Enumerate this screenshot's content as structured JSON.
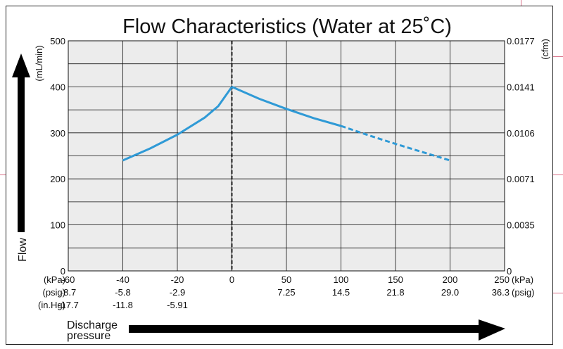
{
  "chart_data": {
    "type": "line",
    "title": "Flow Characteristics (Water at 25˚C)",
    "ylabel": "Flow",
    "ylabel_unit": "(mL/min)",
    "y2label_unit": "(cfm)",
    "xlabel": [
      "Discharge",
      "pressure"
    ],
    "ylim": [
      0,
      500
    ],
    "xlim": [
      -60,
      250
    ],
    "grid": true,
    "y_ticks": [
      0,
      100,
      200,
      300,
      400,
      500
    ],
    "y_tick_labels": [
      "0",
      "100",
      "200",
      "300",
      "400",
      "500"
    ],
    "y2_tick_labels": [
      "0",
      "0.0035",
      "0.0071",
      "0.0106",
      "0.0141",
      "0.0177"
    ],
    "x_ticks": [
      -60,
      -40,
      -20,
      0,
      50,
      100,
      150,
      200,
      250
    ],
    "x_rows": [
      {
        "unit": "(kPa)",
        "unit_right": "(kPa)",
        "labels": [
          "-60",
          "-40",
          "-20",
          "0",
          "50",
          "100",
          "150",
          "200",
          "250"
        ]
      },
      {
        "unit": "(psig)",
        "unit_right": "(psig)",
        "labels": [
          "-8.7",
          "-5.8",
          "-2.9",
          "",
          "7.25",
          "14.5",
          "21.8",
          "29.0",
          "36.3"
        ]
      },
      {
        "unit": "(in.Hg)",
        "unit_right": "",
        "labels": [
          "-17.7",
          "-11.8",
          "-5.91",
          "",
          "",
          "",
          "",
          "",
          ""
        ]
      }
    ],
    "reference_line_x": 0,
    "series": [
      {
        "style": "solid",
        "color": "#2f9ad6",
        "points": [
          [
            -40,
            240
          ],
          [
            -30,
            266
          ],
          [
            -20,
            296
          ],
          [
            -10,
            333
          ],
          [
            -5,
            358
          ],
          [
            0,
            400
          ]
        ]
      },
      {
        "style": "solid",
        "color": "#2f9ad6",
        "points": [
          [
            0,
            400
          ],
          [
            25,
            374
          ],
          [
            50,
            352
          ],
          [
            75,
            332
          ],
          [
            100,
            315
          ]
        ]
      },
      {
        "style": "dashed",
        "color": "#2f9ad6",
        "points": [
          [
            100,
            315
          ],
          [
            125,
            295
          ],
          [
            150,
            276
          ],
          [
            175,
            258
          ],
          [
            200,
            240
          ]
        ]
      }
    ]
  }
}
